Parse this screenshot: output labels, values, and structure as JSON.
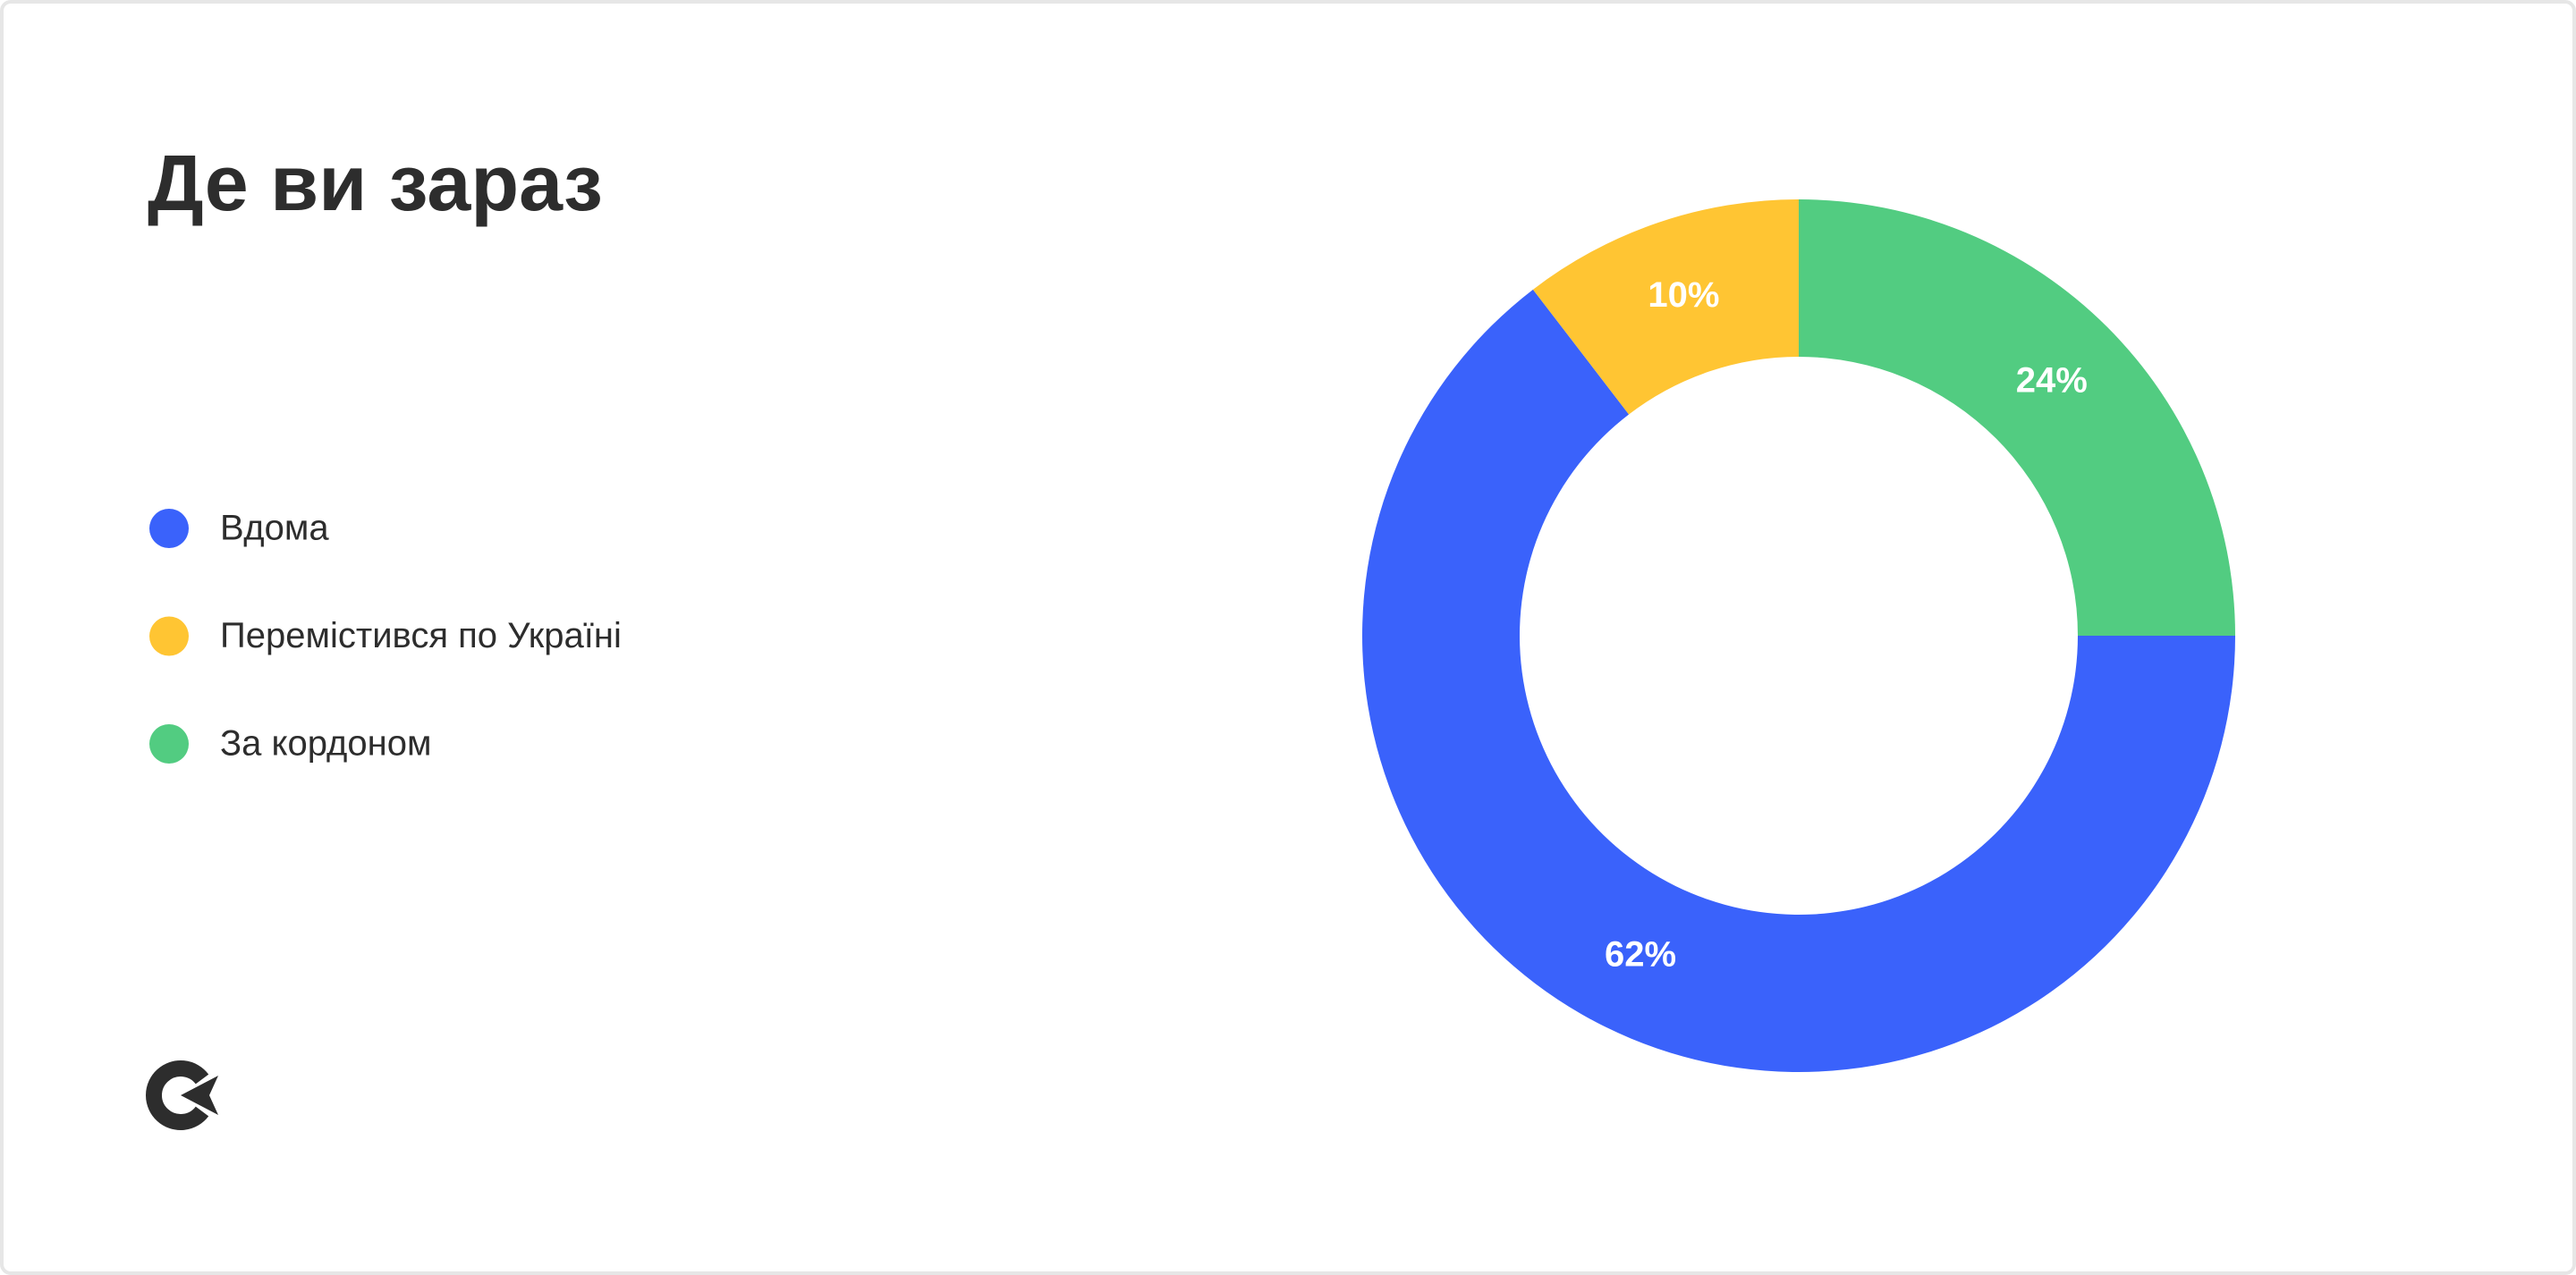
{
  "chart_data": {
    "type": "donut",
    "title": "Де ви зараз",
    "categories": [
      "Вдома",
      "Перемістився по Україні",
      "За кордоном"
    ],
    "values": [
      62,
      10,
      24
    ],
    "value_labels": [
      "62%",
      "10%",
      "24%"
    ],
    "colors": [
      "#3a62fb",
      "#ffc533",
      "#52cc81"
    ]
  }
}
